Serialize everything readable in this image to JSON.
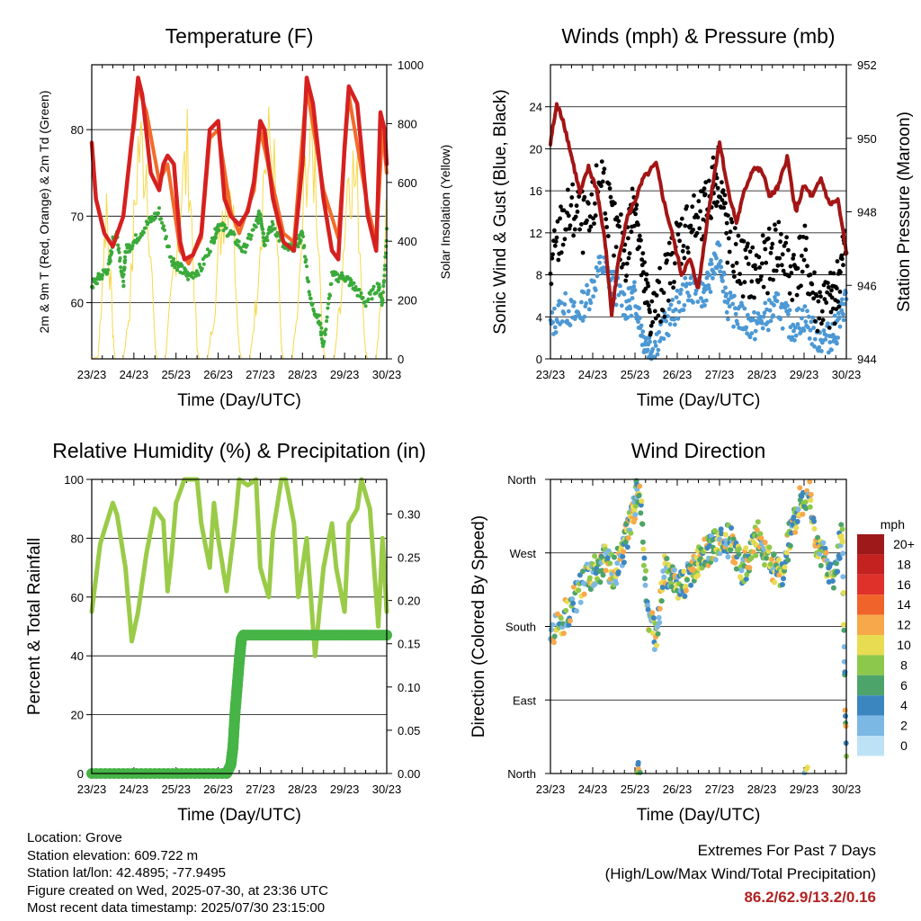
{
  "info": {
    "location": "Location: Grove",
    "elevation": "Station elevation: 609.722 m",
    "latlon": "Station lat/lon: 42.4895; -77.9495",
    "created": "Figure created on Wed, 2025-07-30, at 23:36 UTC",
    "recent": "Most recent data timestamp: 2025/07/30 23:15:00"
  },
  "extremes": {
    "title": "Extremes For Past 7 Days",
    "subtitle": "(High/Low/Max Wind/Total Precipitation)",
    "values": "86.2/62.9/13.2/0.16"
  },
  "colors": {
    "temp2m": "#d62020",
    "temp9m": "#f26b2a",
    "dewpoint": "#3aaa3a",
    "solar": "#f5d94a",
    "wind": "#4c98d4",
    "gust": "#000000",
    "pressure": "#a31515",
    "rh": "#9acb48",
    "precip": "#46b446"
  },
  "chart_data": [
    {
      "type": "line",
      "title": "Temperature (F)",
      "xlabel": "Time (Day/UTC)",
      "ylabel": "2m & 9m T (Red, Orange) & 2m Td (Green)",
      "y2label": "Solar Insolation (Yellow)",
      "x_ticks": [
        "23/23",
        "24/23",
        "25/23",
        "26/23",
        "27/23",
        "28/23",
        "29/23",
        "30/23"
      ],
      "xlim": [
        0,
        7
      ],
      "ylim": [
        53.5,
        87.5
      ],
      "y_ticks": [
        60,
        70,
        80
      ],
      "y2lim": [
        0,
        1000
      ],
      "y2_ticks": [
        0,
        200,
        400,
        600,
        800,
        1000
      ],
      "grid": true,
      "series": [
        {
          "key": "temp2m",
          "x": [
            0,
            0.1,
            0.3,
            0.5,
            0.75,
            1.0,
            1.1,
            1.2,
            1.4,
            1.6,
            1.7,
            1.8,
            1.95,
            2.1,
            2.2,
            2.4,
            2.6,
            2.8,
            3.0,
            3.15,
            3.3,
            3.5,
            3.7,
            3.85,
            4.0,
            4.1,
            4.3,
            4.55,
            4.8,
            5.0,
            5.1,
            5.25,
            5.5,
            5.7,
            5.85,
            6.0,
            6.1,
            6.3,
            6.55,
            6.75,
            6.85,
            6.95,
            7.0
          ],
          "values": [
            78.5,
            72,
            68,
            66.5,
            70,
            81,
            86,
            84,
            75,
            73,
            76,
            77,
            76,
            67,
            65,
            65.5,
            68,
            80,
            81,
            72,
            70,
            69,
            70.5,
            74,
            81,
            80,
            72,
            67,
            66,
            76,
            86,
            83,
            72,
            66,
            65,
            78,
            85,
            83,
            70,
            66,
            82,
            80,
            76
          ]
        },
        {
          "key": "temp9m",
          "x": [
            1.0,
            1.1,
            1.3,
            1.6,
            1.8,
            2.1,
            2.3,
            2.6,
            2.8,
            3.0,
            3.3,
            3.5,
            3.85,
            4.0,
            4.55,
            4.8,
            5.1,
            5.5,
            5.85,
            6.1,
            6.55,
            6.75,
            6.9,
            7.0
          ],
          "values": [
            80,
            85,
            82,
            74,
            76,
            66,
            64.5,
            67.5,
            79,
            80,
            70.5,
            68,
            73,
            80,
            68,
            67,
            85,
            73,
            67.5,
            84,
            71,
            67,
            80,
            75
          ]
        },
        {
          "key": "dewpoint",
          "x": [
            0,
            0.2,
            0.4,
            0.5,
            0.6,
            0.75,
            0.8,
            1.0,
            1.3,
            1.6,
            1.9,
            2.1,
            2.3,
            2.6,
            2.9,
            3.0,
            3.3,
            3.6,
            3.9,
            4.0,
            4.1,
            4.3,
            4.6,
            4.9,
            5.0,
            5.2,
            5.4,
            5.5,
            5.7,
            6.0,
            6.2,
            6.5,
            6.8,
            6.9,
            7.0
          ],
          "values": [
            62,
            63,
            64,
            67,
            68,
            62,
            66,
            67,
            69,
            70.5,
            65,
            64,
            63,
            64,
            67.5,
            69,
            68,
            66,
            69,
            70.5,
            67,
            69,
            66,
            67,
            68,
            60,
            58,
            55,
            63,
            63,
            62,
            60,
            62,
            60,
            68
          ]
        },
        {
          "key": "solar",
          "x": [
            0,
            0.15,
            0.2,
            0.35,
            0.5,
            0.55,
            0.75,
            0.9,
            1.1,
            1.3,
            1.5,
            1.55,
            1.75,
            1.9,
            2.1,
            2.3,
            2.5,
            2.55,
            2.75,
            2.9,
            3.1,
            3.3,
            3.5,
            3.55,
            3.75,
            3.9,
            4.1,
            4.3,
            4.5,
            4.55,
            4.75,
            4.9,
            5.1,
            5.3,
            5.5,
            5.55,
            5.75,
            5.9,
            6.1,
            6.3,
            6.5,
            6.55,
            6.75,
            6.9,
            7.0
          ],
          "values": [
            0,
            10,
            150,
            700,
            120,
            0,
            0,
            220,
            920,
            880,
            60,
            0,
            0,
            300,
            700,
            900,
            40,
            0,
            0,
            200,
            650,
            840,
            50,
            0,
            0,
            250,
            860,
            930,
            50,
            0,
            0,
            220,
            900,
            850,
            40,
            0,
            0,
            260,
            880,
            720,
            30,
            0,
            0,
            300,
            600
          ]
        }
      ]
    },
    {
      "type": "line",
      "title": "Winds (mph) & Pressure (mb)",
      "xlabel": "Time (Day/UTC)",
      "ylabel": "Sonic Wind & Gust (Blue, Black)",
      "y2label": "Station Pressure (Maroon)",
      "x_ticks": [
        "23/23",
        "24/23",
        "25/23",
        "26/23",
        "27/23",
        "28/23",
        "29/23",
        "30/23"
      ],
      "xlim": [
        0,
        7
      ],
      "ylim": [
        0,
        28
      ],
      "y_ticks": [
        0,
        4,
        8,
        12,
        16,
        20,
        24
      ],
      "y2lim": [
        944,
        952
      ],
      "y2_ticks": [
        944,
        946,
        948,
        950,
        952
      ],
      "grid": true,
      "series": [
        {
          "key": "wind",
          "x": [
            0,
            0.3,
            0.6,
            0.9,
            1.2,
            1.5,
            1.8,
            2.0,
            2.2,
            2.4,
            2.7,
            3.0,
            3.3,
            3.6,
            3.8,
            4.0,
            4.2,
            4.5,
            4.8,
            5.1,
            5.4,
            5.7,
            6.0,
            6.3,
            6.6,
            6.8,
            7.0
          ],
          "values": [
            3,
            5,
            4,
            6,
            9,
            7,
            5,
            6,
            2,
            1,
            3,
            5,
            7,
            6,
            8,
            10,
            5,
            4,
            3,
            4,
            5,
            3,
            4,
            2,
            2,
            3,
            6
          ]
        },
        {
          "key": "gust",
          "x": [
            0,
            0.3,
            0.6,
            0.9,
            1.2,
            1.5,
            1.8,
            2.0,
            2.2,
            2.4,
            2.7,
            3.0,
            3.3,
            3.6,
            3.8,
            4.0,
            4.2,
            4.5,
            4.8,
            5.1,
            5.4,
            5.7,
            6.0,
            6.3,
            6.6,
            6.8,
            7.0
          ],
          "values": [
            8,
            13,
            14,
            12,
            18,
            12,
            10,
            16,
            7,
            4,
            7,
            11,
            13,
            13,
            16,
            18,
            11,
            9,
            8,
            9,
            11,
            8,
            10,
            5,
            5,
            7,
            11
          ]
        },
        {
          "key": "pressure",
          "x": [
            0,
            0.15,
            0.3,
            0.5,
            0.7,
            0.9,
            1.1,
            1.3,
            1.45,
            1.6,
            1.8,
            2.0,
            2.2,
            2.5,
            2.7,
            2.9,
            3.1,
            3.3,
            3.5,
            3.7,
            3.9,
            4.0,
            4.2,
            4.4,
            4.6,
            4.8,
            5.0,
            5.2,
            5.4,
            5.6,
            5.8,
            6.0,
            6.2,
            6.4,
            6.6,
            6.8,
            7.0
          ],
          "values": [
            949.9,
            950.9,
            950.5,
            949.5,
            948.5,
            949.2,
            948.6,
            947.1,
            945.2,
            946.6,
            947.8,
            948.3,
            948.9,
            949.3,
            948.2,
            947.3,
            946.3,
            946.7,
            945.9,
            947.7,
            949.2,
            949.9,
            948.6,
            947.7,
            948.6,
            949.2,
            949.1,
            948.4,
            948.7,
            949.5,
            948.0,
            948.7,
            948.4,
            948.9,
            948.2,
            948.3,
            946.9
          ]
        }
      ]
    },
    {
      "type": "line",
      "title": "Relative Humidity (%) & Precipitation (in)",
      "xlabel": "Time (Day/UTC)",
      "ylabel": "Percent & Total Rainfall",
      "x_ticks": [
        "23/23",
        "24/23",
        "25/23",
        "26/23",
        "27/23",
        "28/23",
        "29/23",
        "30/23"
      ],
      "xlim": [
        0,
        7
      ],
      "ylim": [
        0,
        100
      ],
      "y_ticks": [
        0,
        20,
        40,
        60,
        80,
        100
      ],
      "y2lim": [
        0,
        0.34
      ],
      "y2_ticks": [
        0.0,
        0.05,
        0.1,
        0.15,
        0.2,
        0.25,
        0.3
      ],
      "grid": true,
      "series": [
        {
          "key": "rh",
          "x": [
            0,
            0.2,
            0.5,
            0.6,
            0.8,
            0.95,
            1.1,
            1.3,
            1.5,
            1.7,
            1.8,
            1.9,
            2.0,
            2.2,
            2.5,
            2.6,
            2.8,
            2.9,
            3.0,
            3.2,
            3.4,
            3.5,
            3.7,
            3.9,
            4.0,
            4.2,
            4.3,
            4.5,
            4.6,
            4.8,
            4.9,
            5.1,
            5.2,
            5.3,
            5.5,
            5.7,
            5.8,
            6.0,
            6.1,
            6.3,
            6.4,
            6.6,
            6.8,
            6.9,
            7.0
          ],
          "values": [
            55,
            78,
            92,
            88,
            70,
            45,
            55,
            75,
            90,
            86,
            62,
            75,
            92,
            100,
            100,
            85,
            70,
            92,
            80,
            62,
            85,
            100,
            98,
            100,
            70,
            60,
            82,
            100,
            100,
            85,
            60,
            80,
            60,
            40,
            70,
            85,
            70,
            55,
            85,
            90,
            100,
            90,
            50,
            80,
            55
          ]
        },
        {
          "key": "precip",
          "x": [
            0,
            3.2,
            3.3,
            3.35,
            3.4,
            3.45,
            3.5,
            3.55,
            3.6,
            5.0,
            7.0
          ],
          "values": [
            0,
            0,
            0.01,
            0.03,
            0.07,
            0.1,
            0.13,
            0.155,
            0.16,
            0.16,
            0.16
          ]
        }
      ]
    },
    {
      "type": "scatter",
      "title": "Wind Direction",
      "xlabel": "Time (Day/UTC)",
      "ylabel": "Direction (Colored By Speed)",
      "x_ticks": [
        "23/23",
        "24/23",
        "25/23",
        "26/23",
        "27/23",
        "28/23",
        "29/23",
        "30/23"
      ],
      "xlim": [
        0,
        7
      ],
      "y_ticks": [
        "North",
        "East",
        "South",
        "West",
        "North"
      ],
      "ylim": [
        0,
        360
      ],
      "grid": true,
      "legend": {
        "title": "mph",
        "labels": [
          "20+",
          "18",
          "16",
          "14",
          "12",
          "10",
          "8",
          "6",
          "4",
          "2",
          "0"
        ],
        "colors": [
          "#9e1a1a",
          "#c42121",
          "#e0302a",
          "#f0632a",
          "#f7a84a",
          "#e8dc52",
          "#8cc84b",
          "#4ca46a",
          "#3c86c0",
          "#7cb8e4",
          "#bde2f5"
        ]
      },
      "series": [
        {
          "name": "",
          "x": [
            0,
            0.3,
            0.6,
            0.9,
            1.1,
            1.3,
            1.5,
            1.7,
            1.85,
            2.0,
            2.1,
            2.3,
            2.5,
            2.7,
            2.9,
            3.1,
            3.3,
            3.5,
            3.7,
            3.9,
            4.1,
            4.3,
            4.5,
            4.7,
            4.9,
            5.1,
            5.3,
            5.5,
            5.7,
            5.9,
            6.1,
            6.3,
            6.5,
            6.7,
            6.9,
            7.0
          ],
          "values": [
            170,
            190,
            215,
            240,
            250,
            260,
            245,
            270,
            300,
            330,
            360,
            200,
            160,
            250,
            240,
            230,
            240,
            260,
            270,
            280,
            290,
            280,
            250,
            260,
            290,
            270,
            250,
            250,
            300,
            330,
            350,
            280,
            260,
            240,
            300,
            10
          ]
        }
      ]
    }
  ]
}
